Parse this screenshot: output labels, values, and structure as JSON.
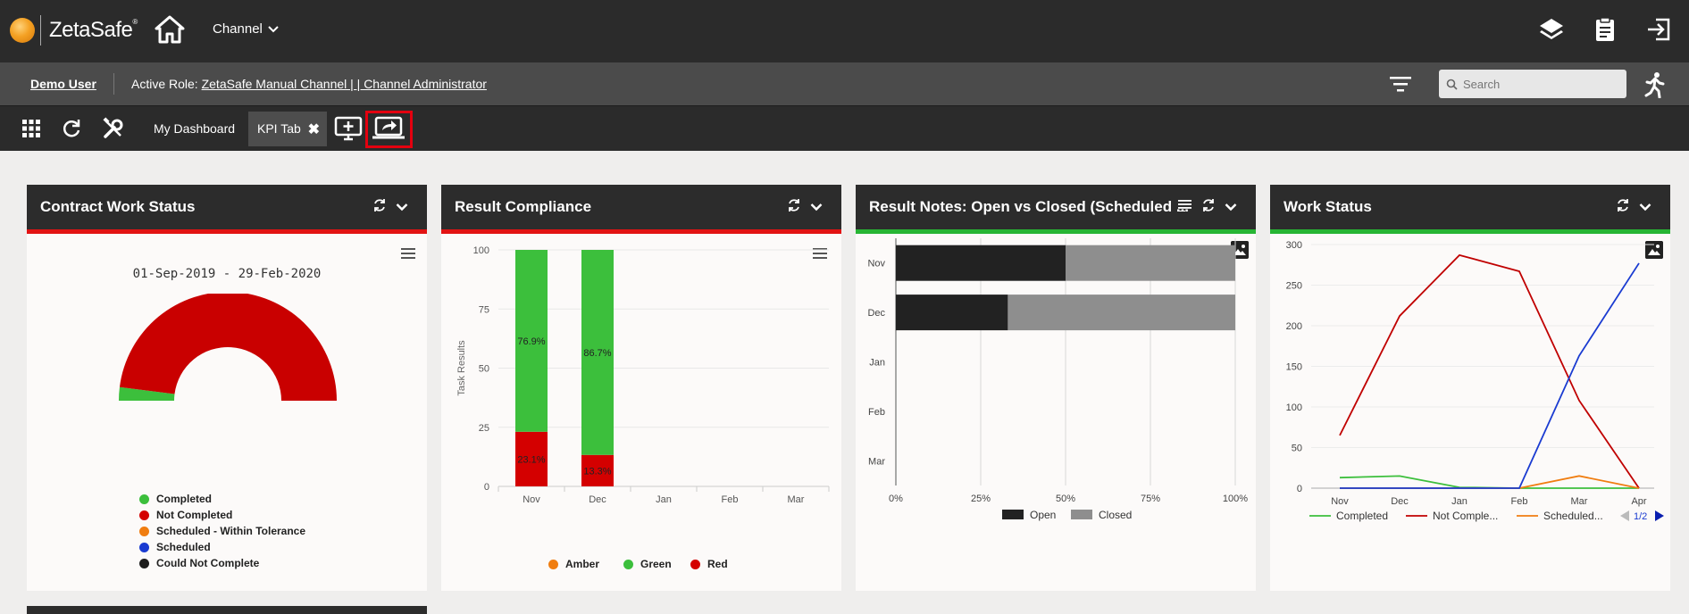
{
  "header": {
    "brand": "ZetaSafe",
    "brand_mark": "®",
    "channel_label": "Channel"
  },
  "rolebar": {
    "user": "Demo User",
    "active_role_label": "Active Role:",
    "active_role_value": "ZetaSafe Manual Channel | | Channel Administrator",
    "search_placeholder": "Search"
  },
  "tabs": {
    "my_dashboard": "My Dashboard",
    "kpi_tab": "KPI Tab",
    "close_glyph": "✖"
  },
  "widgets": {
    "contract": {
      "title": "Contract Work Status",
      "date_range": "01-Sep-2019 - 29-Feb-2020",
      "legend": [
        {
          "label": "Completed",
          "color": "#3cbf3c"
        },
        {
          "label": "Not Completed",
          "color": "#d40000"
        },
        {
          "label": "Scheduled - Within Tolerance",
          "color": "#f07d10"
        },
        {
          "label": "Scheduled",
          "color": "#1a3bd1"
        },
        {
          "label": "Could Not Complete",
          "color": "#1d1d1d"
        }
      ]
    },
    "compliance": {
      "title": "Result Compliance",
      "legend": [
        {
          "label": "Amber",
          "color": "#f07d10"
        },
        {
          "label": "Green",
          "color": "#3cbf3c"
        },
        {
          "label": "Red",
          "color": "#d40000"
        }
      ]
    },
    "notes": {
      "title": "Result Notes: Open vs Closed (Scheduled ...",
      "legend": [
        {
          "label": "Open",
          "color": "#222222"
        },
        {
          "label": "Closed",
          "color": "#8e8e8e"
        }
      ]
    },
    "work": {
      "title": "Work Status",
      "legend": [
        {
          "label": "Completed",
          "color": "#3cbf3c"
        },
        {
          "label": "Not Comple...",
          "color": "#c00000"
        },
        {
          "label": "Scheduled...",
          "color": "#f07d10"
        }
      ],
      "pager": "1/2"
    }
  },
  "chart_data": [
    {
      "type": "pie",
      "title": "01-Sep-2019 - 29-Feb-2020",
      "categories": [
        "Completed",
        "Not Completed",
        "Scheduled - Within Tolerance",
        "Scheduled",
        "Could Not Complete"
      ],
      "values": [
        4,
        96,
        0,
        0,
        0
      ],
      "colors": [
        "#3cbf3c",
        "#d40000",
        "#f07d10",
        "#1a3bd1",
        "#1d1d1d"
      ]
    },
    {
      "type": "bar",
      "stacked": true,
      "categories": [
        "Nov",
        "Dec",
        "Jan",
        "Feb",
        "Mar"
      ],
      "ylabel": "Task Results",
      "ylim": [
        0,
        100
      ],
      "yticks": [
        0,
        25,
        50,
        75,
        100
      ],
      "series": [
        {
          "name": "Red",
          "color": "#d40000",
          "values": [
            23.1,
            13.3,
            0,
            0,
            0
          ],
          "labels": [
            "23.1%",
            "13.3%",
            "",
            "",
            ""
          ]
        },
        {
          "name": "Green",
          "color": "#3cbf3c",
          "values": [
            76.9,
            86.7,
            0,
            0,
            0
          ],
          "labels": [
            "76.9%",
            "86.7%",
            "",
            "",
            ""
          ]
        },
        {
          "name": "Amber",
          "color": "#f07d10",
          "values": [
            0,
            0,
            0,
            0,
            0
          ],
          "labels": [
            "",
            "",
            "",
            "",
            ""
          ]
        }
      ]
    },
    {
      "type": "bar",
      "orientation": "horizontal",
      "stacked_percent": true,
      "categories": [
        "Nov",
        "Dec",
        "Jan",
        "Feb",
        "Mar"
      ],
      "xticks": [
        "0%",
        "25%",
        "50%",
        "75%",
        "100%"
      ],
      "series": [
        {
          "name": "Open",
          "color": "#222222",
          "values": [
            50,
            33,
            0,
            0,
            0
          ]
        },
        {
          "name": "Closed",
          "color": "#8e8e8e",
          "values": [
            50,
            67,
            0,
            0,
            0
          ]
        }
      ]
    },
    {
      "type": "line",
      "x": [
        "Nov",
        "Dec",
        "Jan",
        "Feb",
        "Mar",
        "Apr"
      ],
      "ylim": [
        0,
        300
      ],
      "yticks": [
        0,
        50,
        100,
        150,
        200,
        250,
        300
      ],
      "series": [
        {
          "name": "Completed",
          "color": "#3cbf3c",
          "values": [
            13,
            15,
            1,
            0,
            0,
            0
          ]
        },
        {
          "name": "Not Comple...",
          "color": "#c00000",
          "values": [
            65,
            212,
            287,
            267,
            108,
            0
          ]
        },
        {
          "name": "Scheduled...",
          "color": "#f07d10",
          "values": [
            0,
            0,
            0,
            0,
            15,
            0
          ]
        },
        {
          "name": "",
          "color": "#1a3bd1",
          "values": [
            0,
            0,
            0,
            0,
            163,
            277
          ]
        }
      ]
    }
  ]
}
